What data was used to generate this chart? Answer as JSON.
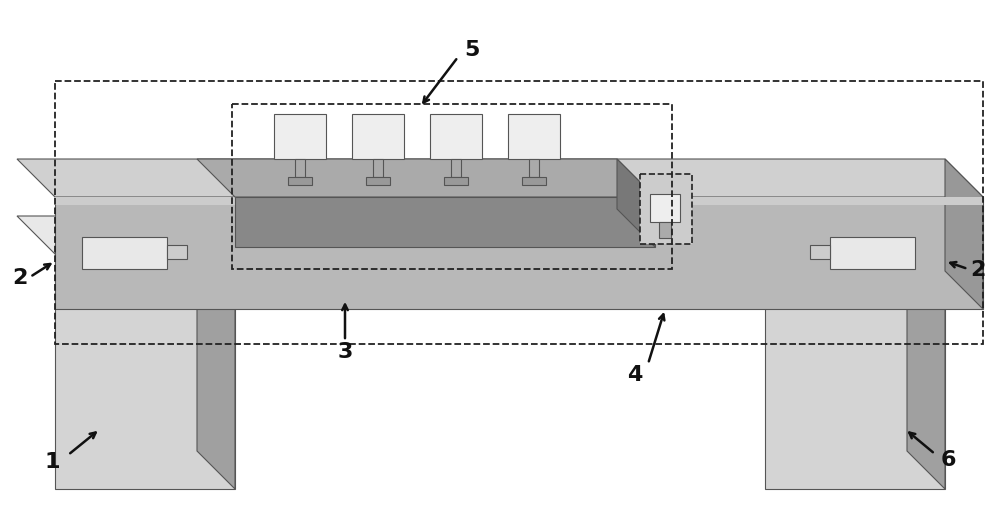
{
  "fig_width": 10.0,
  "fig_height": 5.06,
  "bg_color": "#ffffff",
  "colors": {
    "pillar_light_front": "#d4d4d4",
    "pillar_dark_side": "#a0a0a0",
    "pillar_top": "#e8e8e8",
    "bridge_front": "#b8b8b8",
    "bridge_top": "#d0d0d0",
    "bridge_side": "#989898",
    "chip_body": "#888888",
    "chip_top": "#aaaaaa",
    "chip_side": "#787878",
    "waveguide_strip": "#c8c8c8",
    "waveguide_strip2": "#e0e0e0",
    "element_face": "#eeeeee",
    "element_connector": "#aaaaaa",
    "stub_white": "#e8e8e8",
    "dashed": "#222222",
    "arrow": "#111111",
    "text": "#111111",
    "edge": "#555555"
  }
}
